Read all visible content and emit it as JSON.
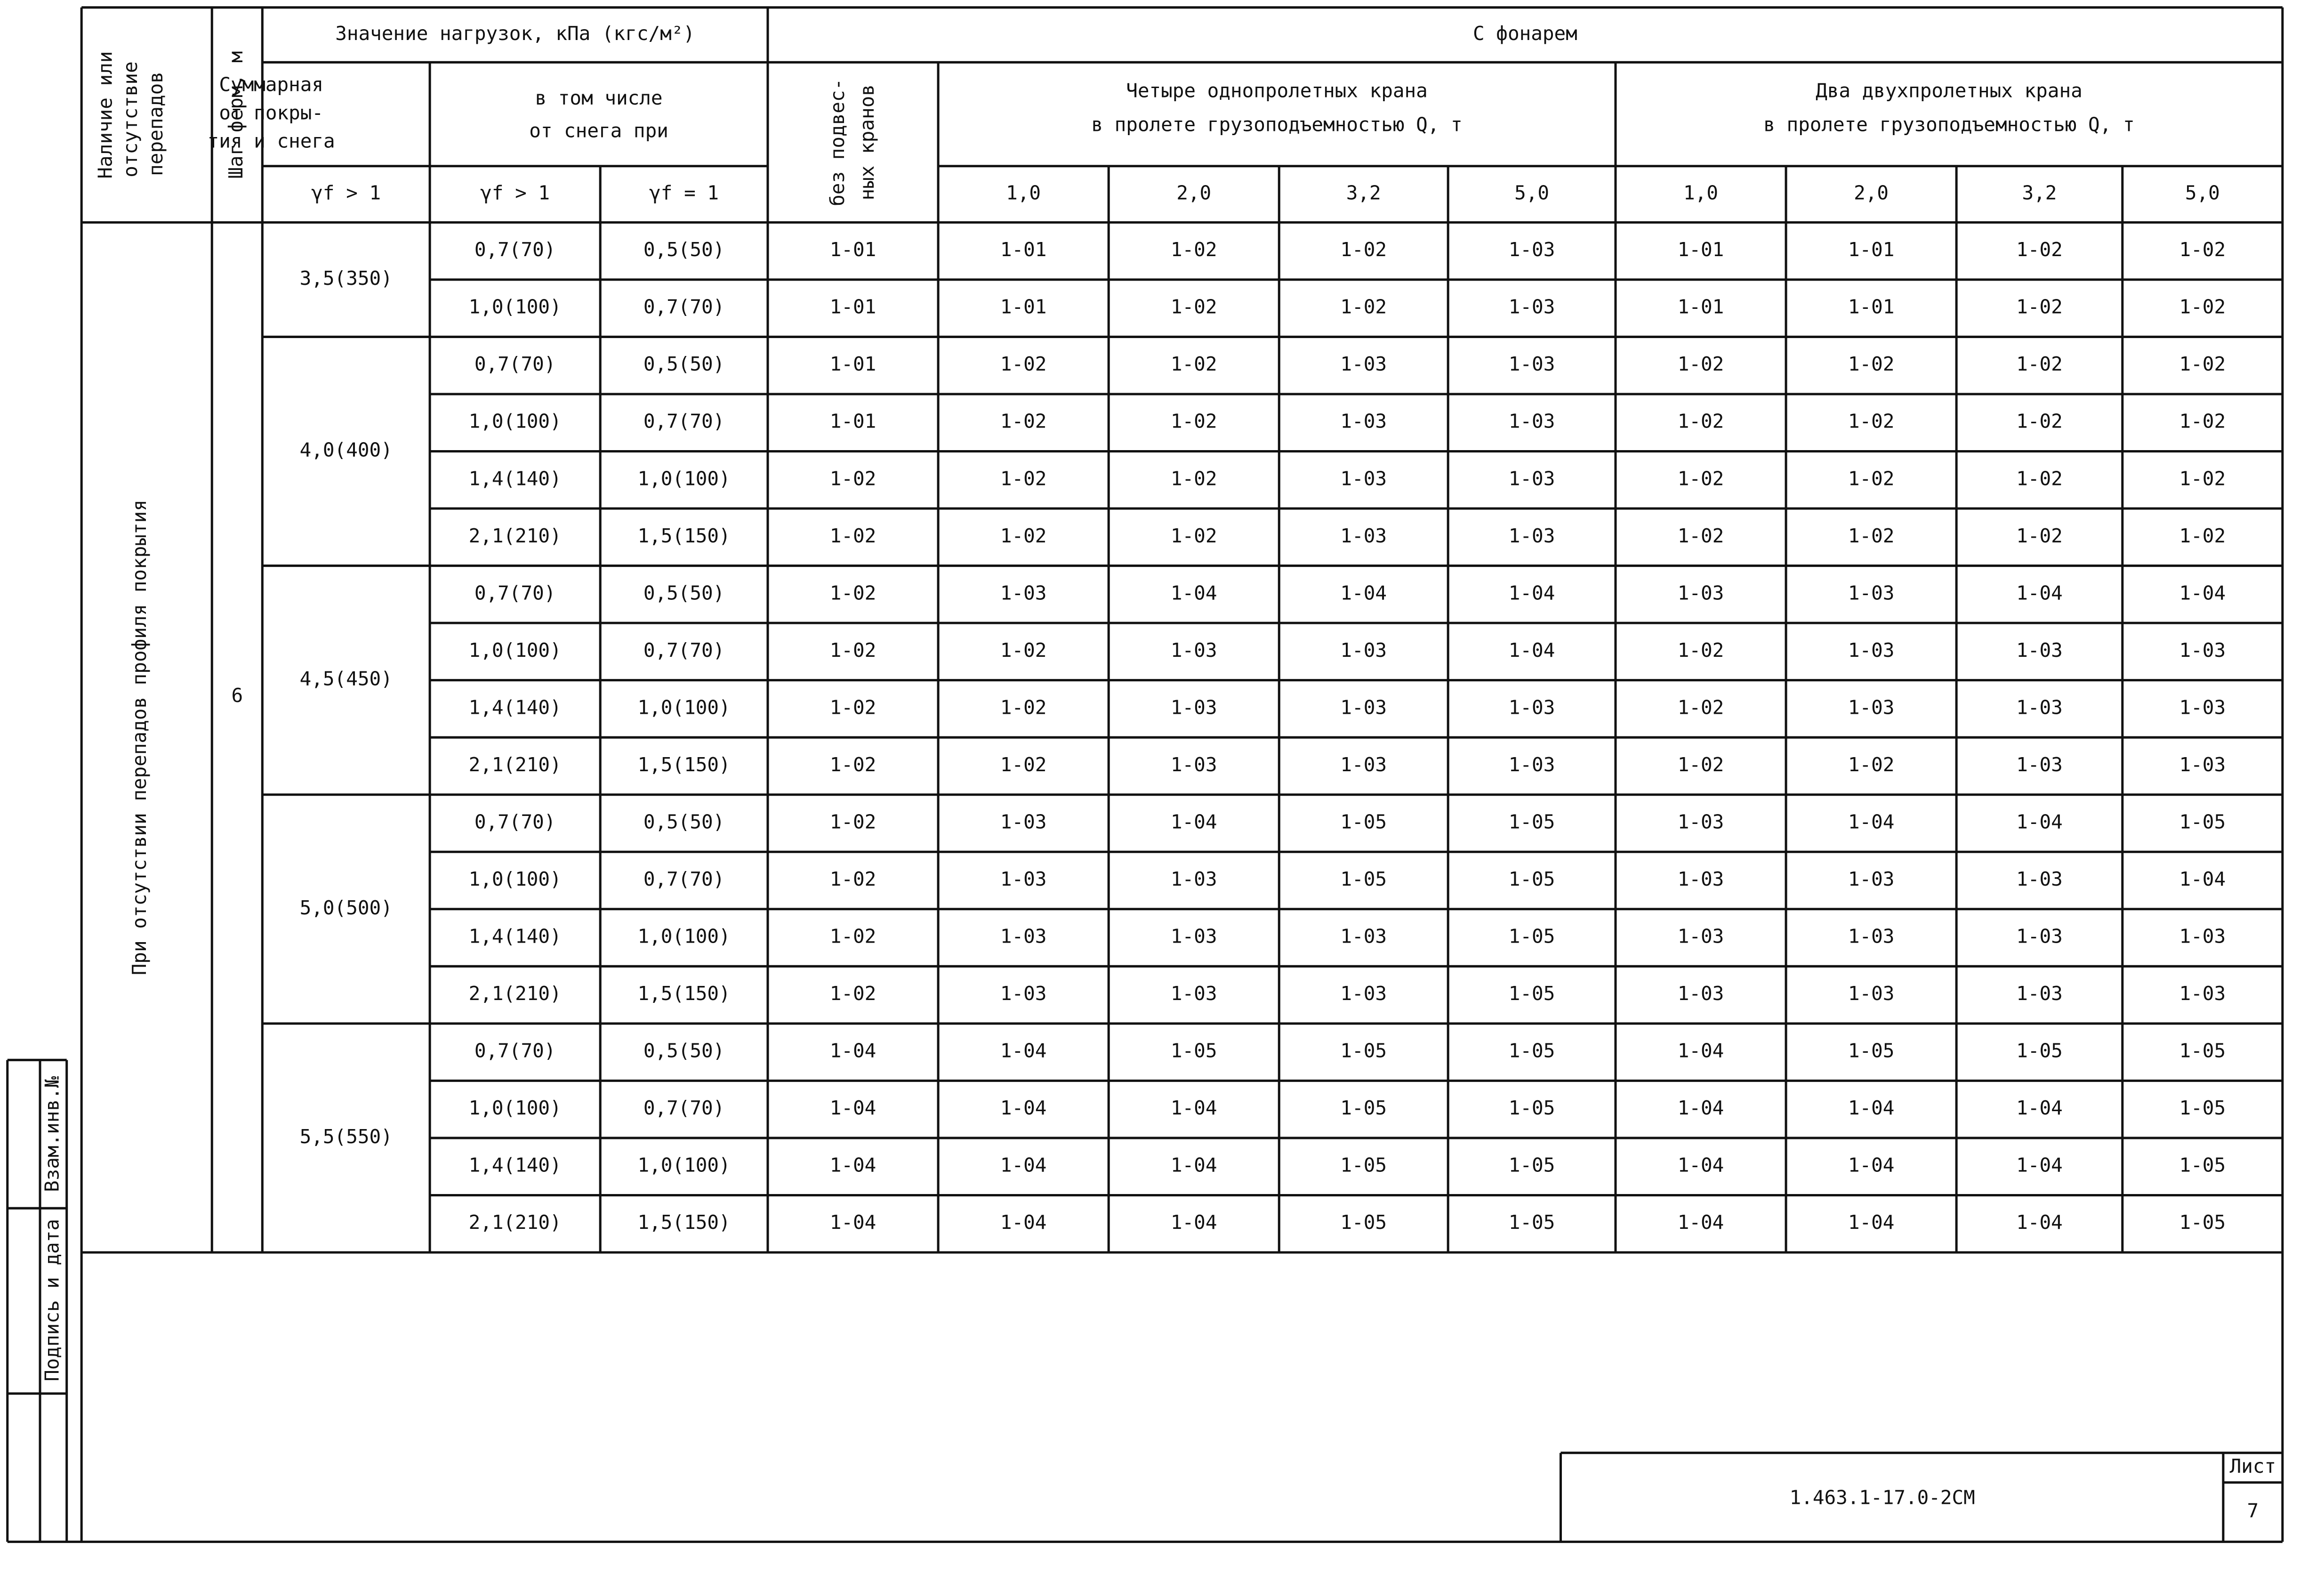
{
  "header": {
    "presence": [
      "Наличие или",
      "отсутствие",
      "перепадов"
    ],
    "truss_step": "Шаг ферм, м",
    "loads": "Значение нагрузок, кПа (кгс/м²)",
    "lantern": "С фонарем",
    "total": [
      "Суммарная",
      "от покры-",
      "тия и снега"
    ],
    "snow": [
      "в том числе",
      "от снега при"
    ],
    "gamma_total": "γf > 1",
    "gamma_snow_gt": "γf > 1",
    "gamma_snow_eq": "γf = 1",
    "no_cranes": [
      "без подвес-",
      "ных кранов"
    ],
    "four_cranes": [
      "Четыре однопролетных крана",
      "в пролете грузоподъемностью Q, т"
    ],
    "two_cranes": [
      "Два двухпролетных крана",
      "в пролете грузоподъемностью Q, т"
    ],
    "capacities_four": [
      "1,0",
      "2,0",
      "3,2",
      "5,0"
    ],
    "capacities_two": [
      "1,0",
      "2,0",
      "3,2",
      "5,0"
    ]
  },
  "side": {
    "condition": "При отсутствии перепадов профиля покрытия",
    "step": "6"
  },
  "groups": [
    {
      "total": "3,5(350)",
      "rows": [
        [
          "0,7(70)",
          "0,5(50)",
          "1-01",
          "1-01",
          "1-02",
          "1-02",
          "1-03",
          "1-01",
          "1-01",
          "1-02",
          "1-02"
        ],
        [
          "1,0(100)",
          "0,7(70)",
          "1-01",
          "1-01",
          "1-02",
          "1-02",
          "1-03",
          "1-01",
          "1-01",
          "1-02",
          "1-02"
        ]
      ]
    },
    {
      "total": "4,0(400)",
      "rows": [
        [
          "0,7(70)",
          "0,5(50)",
          "1-01",
          "1-02",
          "1-02",
          "1-03",
          "1-03",
          "1-02",
          "1-02",
          "1-02",
          "1-02"
        ],
        [
          "1,0(100)",
          "0,7(70)",
          "1-01",
          "1-02",
          "1-02",
          "1-03",
          "1-03",
          "1-02",
          "1-02",
          "1-02",
          "1-02"
        ],
        [
          "1,4(140)",
          "1,0(100)",
          "1-02",
          "1-02",
          "1-02",
          "1-03",
          "1-03",
          "1-02",
          "1-02",
          "1-02",
          "1-02"
        ],
        [
          "2,1(210)",
          "1,5(150)",
          "1-02",
          "1-02",
          "1-02",
          "1-03",
          "1-03",
          "1-02",
          "1-02",
          "1-02",
          "1-02"
        ]
      ]
    },
    {
      "total": "4,5(450)",
      "rows": [
        [
          "0,7(70)",
          "0,5(50)",
          "1-02",
          "1-03",
          "1-04",
          "1-04",
          "1-04",
          "1-03",
          "1-03",
          "1-04",
          "1-04"
        ],
        [
          "1,0(100)",
          "0,7(70)",
          "1-02",
          "1-02",
          "1-03",
          "1-03",
          "1-04",
          "1-02",
          "1-03",
          "1-03",
          "1-03"
        ],
        [
          "1,4(140)",
          "1,0(100)",
          "1-02",
          "1-02",
          "1-03",
          "1-03",
          "1-03",
          "1-02",
          "1-03",
          "1-03",
          "1-03"
        ],
        [
          "2,1(210)",
          "1,5(150)",
          "1-02",
          "1-02",
          "1-03",
          "1-03",
          "1-03",
          "1-02",
          "1-02",
          "1-03",
          "1-03"
        ]
      ]
    },
    {
      "total": "5,0(500)",
      "rows": [
        [
          "0,7(70)",
          "0,5(50)",
          "1-02",
          "1-03",
          "1-04",
          "1-05",
          "1-05",
          "1-03",
          "1-04",
          "1-04",
          "1-05"
        ],
        [
          "1,0(100)",
          "0,7(70)",
          "1-02",
          "1-03",
          "1-03",
          "1-05",
          "1-05",
          "1-03",
          "1-03",
          "1-03",
          "1-04"
        ],
        [
          "1,4(140)",
          "1,0(100)",
          "1-02",
          "1-03",
          "1-03",
          "1-03",
          "1-05",
          "1-03",
          "1-03",
          "1-03",
          "1-03"
        ],
        [
          "2,1(210)",
          "1,5(150)",
          "1-02",
          "1-03",
          "1-03",
          "1-03",
          "1-05",
          "1-03",
          "1-03",
          "1-03",
          "1-03"
        ]
      ]
    },
    {
      "total": "5,5(550)",
      "rows": [
        [
          "0,7(70)",
          "0,5(50)",
          "1-04",
          "1-04",
          "1-05",
          "1-05",
          "1-05",
          "1-04",
          "1-05",
          "1-05",
          "1-05"
        ],
        [
          "1,0(100)",
          "0,7(70)",
          "1-04",
          "1-04",
          "1-04",
          "1-05",
          "1-05",
          "1-04",
          "1-04",
          "1-04",
          "1-05"
        ],
        [
          "1,4(140)",
          "1,0(100)",
          "1-04",
          "1-04",
          "1-04",
          "1-05",
          "1-05",
          "1-04",
          "1-04",
          "1-04",
          "1-05"
        ],
        [
          "2,1(210)",
          "1,5(150)",
          "1-04",
          "1-04",
          "1-04",
          "1-05",
          "1-05",
          "1-04",
          "1-04",
          "1-04",
          "1-05"
        ]
      ]
    }
  ],
  "stamp": {
    "code": "1.463.1-17.0-2СМ",
    "sheet_label": "Лист",
    "sheet": "7"
  },
  "margin": [
    "Взам.инв.№",
    "Подпись и дата"
  ]
}
